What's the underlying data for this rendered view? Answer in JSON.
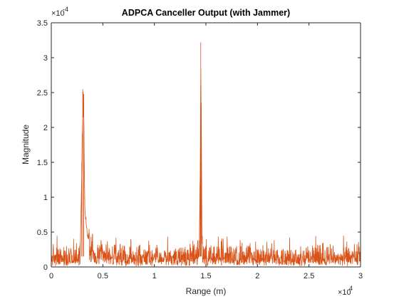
{
  "chart_data": {
    "type": "line",
    "title": "ADPCA Canceller Output (with Jammer)",
    "xlabel": "Range (m)",
    "ylabel": "Magnitude",
    "x_exponent_label": "×10",
    "x_exponent_power": "4",
    "y_exponent_label": "×10",
    "y_exponent_power": "-4",
    "xlim": [
      0,
      30000
    ],
    "ylim": [
      0,
      0.00035
    ],
    "x_tick_values": [
      0,
      5000,
      10000,
      15000,
      20000,
      25000,
      30000
    ],
    "x_tick_labels": [
      "0",
      "0.5",
      "1",
      "1.5",
      "2",
      "2.5",
      "3"
    ],
    "y_tick_values": [
      0,
      5e-05,
      0.0001,
      0.00015,
      0.0002,
      0.00025,
      0.0003,
      0.00035
    ],
    "y_tick_labels": [
      "0",
      "0.5",
      "1",
      "1.5",
      "2",
      "2.5",
      "3",
      "3.5"
    ],
    "grid": false,
    "series": [
      {
        "color": "#d95319",
        "noise_floor_mean": 1.7e-05,
        "noise_floor_max": 4.5e-05,
        "x": [
          0,
          2000,
          2800,
          2950,
          3050,
          3150,
          3250,
          3350,
          3500,
          3800,
          4200,
          8000,
          14000,
          14350,
          14450,
          14500,
          14550,
          14620,
          14750,
          20000,
          25000,
          30000
        ],
        "values": [
          1.7e-05,
          1.8e-05,
          2e-05,
          0.00015,
          0.000255,
          0.000248,
          9e-05,
          7.2e-05,
          5e-05,
          3.5e-05,
          2e-05,
          1.8e-05,
          1.8e-05,
          3e-05,
          0.00015,
          0.000322,
          0.000235,
          4e-05,
          2e-05,
          1.8e-05,
          1.9e-05,
          1.7e-05
        ]
      }
    ]
  }
}
